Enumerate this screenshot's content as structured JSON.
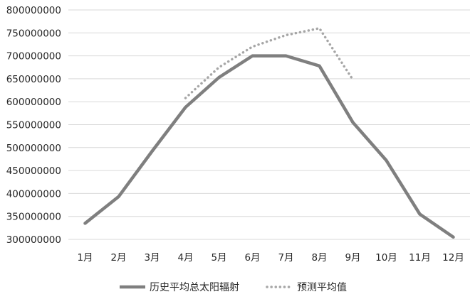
{
  "chart_data": {
    "type": "line",
    "categories": [
      "1月",
      "2月",
      "3月",
      "4月",
      "5月",
      "6月",
      "7月",
      "8月",
      "9月",
      "10月",
      "11月",
      "12月"
    ],
    "ylim": [
      300000000,
      800000000
    ],
    "yticks": [
      "300000000",
      "350000000",
      "400000000",
      "450000000",
      "500000000",
      "550000000",
      "600000000",
      "650000000",
      "700000000",
      "750000000",
      "800000000"
    ],
    "grid": true,
    "legend_position": "bottom",
    "series": [
      {
        "name": "历史平均总太阳辐射",
        "style": "solid",
        "color": "#7f7f7f",
        "values": [
          335000000,
          393000000,
          492000000,
          588000000,
          653000000,
          700000000,
          700000000,
          678000000,
          555000000,
          472000000,
          355000000,
          305000000
        ]
      },
      {
        "name": "预测平均值",
        "style": "dotted",
        "color": "#a6a6a6",
        "values": [
          null,
          null,
          null,
          608000000,
          675000000,
          720000000,
          745000000,
          760000000,
          648000000,
          null,
          null,
          null
        ]
      }
    ]
  }
}
